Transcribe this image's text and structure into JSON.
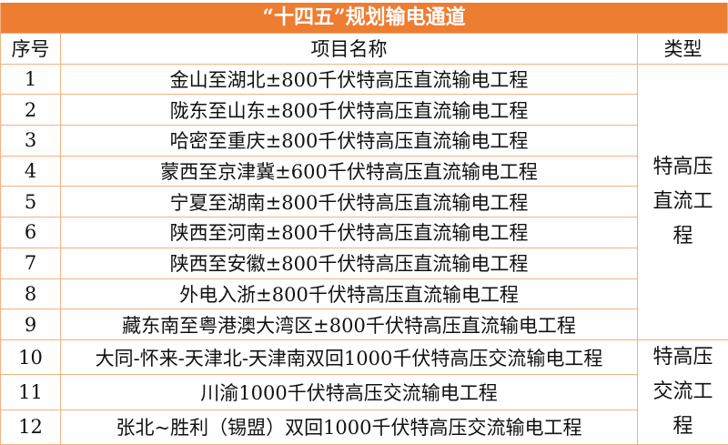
{
  "title": "“十四五”规划输电通道",
  "headers": {
    "index": "序号",
    "name": "项目名称",
    "type": "类型"
  },
  "groups": [
    {
      "type": "特高压直流工程",
      "rows": [
        {
          "index": "1",
          "name": "金山至湖北±800千伏特高压直流输电工程"
        },
        {
          "index": "2",
          "name": "陇东至山东±800千伏特高压直流输电工程"
        },
        {
          "index": "3",
          "name": "哈密至重庆±800千伏特高压直流输电工程"
        },
        {
          "index": "4",
          "name": "蒙西至京津冀±600千伏特高压直流输电工程"
        },
        {
          "index": "5",
          "name": "宁夏至湖南±800千伏特高压直流输电工程"
        },
        {
          "index": "6",
          "name": "陕西至河南±800千伏特高压直流输电工程"
        },
        {
          "index": "7",
          "name": "陕西至安徽±800千伏特高压直流输电工程"
        },
        {
          "index": "8",
          "name": "外电入浙±800千伏特高压直流输电工程"
        },
        {
          "index": "9",
          "name": "藏东南至粤港澳大湾区±800千伏特高压直流输电工程"
        }
      ]
    },
    {
      "type": "特高压交流工程",
      "rows": [
        {
          "index": "10",
          "name": "大同-怀来-天津北-天津南双回1000千伏特高压交流输电工程"
        },
        {
          "index": "11",
          "name": "川渝1000千伏特高压交流输电工程"
        },
        {
          "index": "12",
          "name": "张北~胜利（锡盟）双回1000千伏特高压交流输电工程"
        }
      ]
    }
  ]
}
